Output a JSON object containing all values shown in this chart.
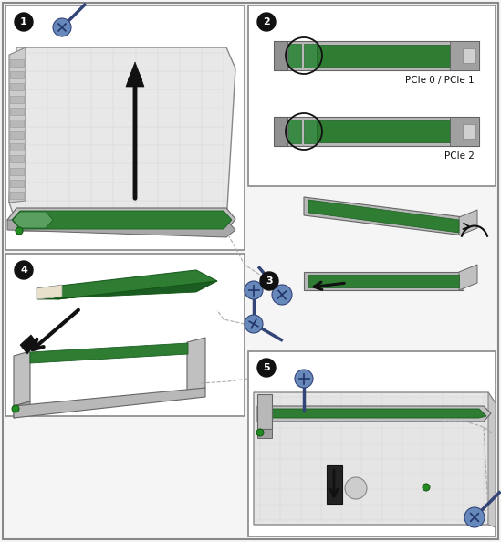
{
  "panel_bg": "#f5f5f5",
  "white": "#ffffff",
  "black": "#000000",
  "border_color": "#888888",
  "green_pcb": "#2e7d32",
  "green_bright": "#4caf50",
  "gray_bracket": "#aaaaaa",
  "gray_dark": "#777777",
  "gray_light": "#cccccc",
  "gray_chassis": "#d8d8d8",
  "gray_mid": "#b0b0b0",
  "step_circle_bg": "#111111",
  "step_circle_fg": "#ffffff",
  "arrow_color": "#111111",
  "screw_blue": "#2244aa",
  "screw_light": "#7799cc",
  "dashed_color": "#999999",
  "green_dot": "#228b22"
}
